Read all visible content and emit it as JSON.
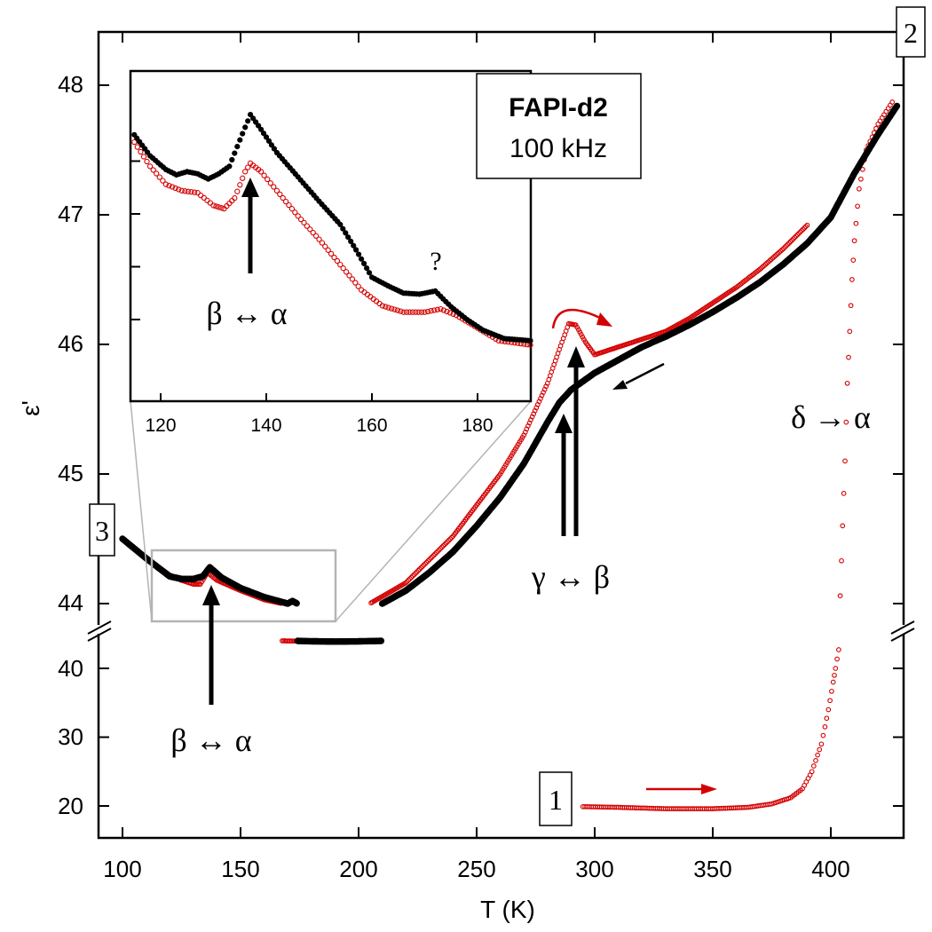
{
  "chart_data": {
    "type": "scatter",
    "title": "FAPI-d2",
    "subtitle": "100 kHz",
    "xlabel": "T (K)",
    "ylabel": "ε'",
    "xlim": [
      90,
      430
    ],
    "x_ticks": [
      "100",
      "150",
      "200",
      "250",
      "300",
      "350",
      "400"
    ],
    "y_ticks_upper": [
      "44",
      "45",
      "46",
      "47",
      "48"
    ],
    "y_ticks_lower": [
      "20",
      "30",
      "40"
    ],
    "axis_break": "y axis broken between 40 and 44",
    "colors": {
      "cooling": "#000000",
      "heating": "#d40000",
      "inset_frame": "#b4b4b4"
    },
    "series": [
      {
        "name": "heating (red open circles, 1 → 2)",
        "color": "#d40000",
        "marker": "open-circle",
        "points": [
          [
            295,
            19.9
          ],
          [
            310,
            19.8
          ],
          [
            330,
            19.6
          ],
          [
            350,
            19.6
          ],
          [
            365,
            19.8
          ],
          [
            375,
            20.3
          ],
          [
            383,
            21.2
          ],
          [
            388,
            22.5
          ],
          [
            392,
            25
          ],
          [
            396,
            29
          ],
          [
            399,
            34
          ],
          [
            401,
            38
          ],
          [
            402,
            40
          ],
          [
            404,
            44.06
          ],
          [
            405,
            44.6
          ],
          [
            406,
            45.1
          ],
          [
            407,
            45.7
          ],
          [
            408,
            46.1
          ],
          [
            409,
            46.5
          ],
          [
            410,
            46.8
          ],
          [
            412,
            47.2
          ],
          [
            415,
            47.5
          ],
          [
            420,
            47.7
          ],
          [
            426,
            47.87
          ],
          [
            100,
            44.5
          ],
          [
            110,
            44.35
          ],
          [
            120,
            44.22
          ],
          [
            125,
            44.18
          ],
          [
            130,
            44.15
          ],
          [
            133,
            44.15
          ],
          [
            136,
            44.24
          ],
          [
            140,
            44.18
          ],
          [
            150,
            44.1
          ],
          [
            160,
            44.03
          ],
          [
            170,
            43.99
          ],
          [
            180,
            43.93
          ],
          [
            190,
            43.9
          ],
          [
            200,
            43.95
          ],
          [
            220,
            44.16
          ],
          [
            240,
            44.52
          ],
          [
            260,
            45.0
          ],
          [
            270,
            45.3
          ],
          [
            280,
            45.7
          ],
          [
            285,
            45.96
          ],
          [
            289,
            46.16
          ],
          [
            292,
            46.15
          ],
          [
            296,
            46.02
          ],
          [
            300,
            45.92
          ],
          [
            310,
            45.98
          ],
          [
            320,
            46.04
          ],
          [
            330,
            46.1
          ],
          [
            340,
            46.2
          ],
          [
            350,
            46.32
          ],
          [
            360,
            46.44
          ],
          [
            370,
            46.58
          ],
          [
            380,
            46.74
          ],
          [
            390,
            46.92
          ]
        ]
      },
      {
        "name": "cooling (black filled circles, 2 → 3)",
        "color": "#000000",
        "marker": "filled-circle",
        "points": [
          [
            428,
            47.84
          ],
          [
            420,
            47.62
          ],
          [
            410,
            47.32
          ],
          [
            400,
            46.98
          ],
          [
            390,
            46.78
          ],
          [
            380,
            46.62
          ],
          [
            370,
            46.48
          ],
          [
            360,
            46.36
          ],
          [
            350,
            46.25
          ],
          [
            340,
            46.15
          ],
          [
            330,
            46.06
          ],
          [
            320,
            45.98
          ],
          [
            310,
            45.88
          ],
          [
            300,
            45.78
          ],
          [
            290,
            45.65
          ],
          [
            285,
            45.55
          ],
          [
            280,
            45.4
          ],
          [
            270,
            45.08
          ],
          [
            260,
            44.82
          ],
          [
            250,
            44.6
          ],
          [
            240,
            44.4
          ],
          [
            230,
            44.24
          ],
          [
            220,
            44.1
          ],
          [
            210,
            44.0
          ],
          [
            200,
            43.93
          ],
          [
            190,
            43.9
          ],
          [
            180,
            43.94
          ],
          [
            172,
            44.02
          ],
          [
            170,
            44.0
          ],
          [
            160,
            44.05
          ],
          [
            150,
            44.12
          ],
          [
            142,
            44.2
          ],
          [
            137,
            44.28
          ],
          [
            134,
            44.21
          ],
          [
            130,
            44.19
          ],
          [
            125,
            44.19
          ],
          [
            120,
            44.21
          ],
          [
            110,
            44.35
          ],
          [
            100,
            44.5
          ]
        ]
      }
    ],
    "annotations": {
      "label_1": "1",
      "label_2": "2",
      "label_3": "3",
      "delta_alpha": "δ → α",
      "gamma_beta": "γ ↔ β",
      "beta_alpha_main": "β ↔ α",
      "beta_alpha_inset": "β ↔ α",
      "question": "?"
    },
    "inset": {
      "xlim": [
        115,
        190
      ],
      "x_ticks": [
        "120",
        "140",
        "160",
        "180"
      ],
      "zoom_region": "x from 113 to 190 K around ε' ≈ 44",
      "series": [
        {
          "name": "cooling",
          "color": "#000000",
          "points": [
            [
              115,
              47.75
            ],
            [
              118,
              47.55
            ],
            [
              121,
              47.42
            ],
            [
              123,
              47.37
            ],
            [
              125,
              47.4
            ],
            [
              127,
              47.38
            ],
            [
              129,
              47.33
            ],
            [
              131,
              47.38
            ],
            [
              133,
              47.45
            ],
            [
              135,
              47.7
            ],
            [
              137,
              47.94
            ],
            [
              139,
              47.8
            ],
            [
              142,
              47.58
            ],
            [
              146,
              47.35
            ],
            [
              150,
              47.12
            ],
            [
              154,
              46.9
            ],
            [
              157,
              46.66
            ],
            [
              160,
              46.4
            ],
            [
              163,
              46.32
            ],
            [
              166,
              46.25
            ],
            [
              169,
              46.24
            ],
            [
              172,
              46.27
            ],
            [
              175,
              46.12
            ],
            [
              178,
              46.0
            ],
            [
              181,
              45.9
            ],
            [
              185,
              45.82
            ],
            [
              190,
              45.8
            ]
          ]
        },
        {
          "name": "heating",
          "color": "#d40000",
          "points": [
            [
              115,
              47.68
            ],
            [
              118,
              47.45
            ],
            [
              121,
              47.28
            ],
            [
              124,
              47.22
            ],
            [
              127,
              47.2
            ],
            [
              130,
              47.08
            ],
            [
              132,
              47.05
            ],
            [
              134,
              47.15
            ],
            [
              136,
              47.4
            ],
            [
              137,
              47.48
            ],
            [
              139,
              47.4
            ],
            [
              142,
              47.22
            ],
            [
              146,
              46.98
            ],
            [
              150,
              46.76
            ],
            [
              154,
              46.52
            ],
            [
              158,
              46.28
            ],
            [
              162,
              46.13
            ],
            [
              166,
              46.07
            ],
            [
              170,
              46.07
            ],
            [
              173,
              46.1
            ],
            [
              176,
              46.04
            ],
            [
              180,
              45.92
            ],
            [
              184,
              45.8
            ],
            [
              190,
              45.76
            ]
          ]
        }
      ]
    }
  }
}
